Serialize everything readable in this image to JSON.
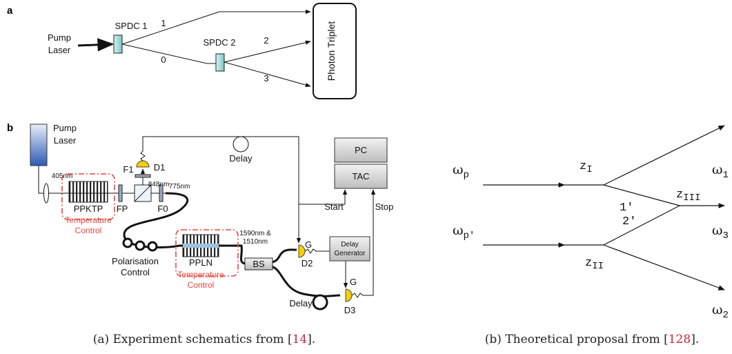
{
  "panel_a": {
    "label": "a",
    "pump": [
      "Pump",
      "Laser"
    ],
    "spdc1": "SPDC 1",
    "spdc2": "SPDC 2",
    "path_labels": [
      "1",
      "0",
      "2",
      "3"
    ],
    "detector": "Photon Triplet"
  },
  "panel_b": {
    "label": "b",
    "pump": [
      "Pump",
      "Laser"
    ],
    "pump_wavelength": "405nm",
    "d1": "D1",
    "f1": "F1",
    "wavelength_848": "848nm",
    "delay_top": "Delay",
    "pc": "PC",
    "tac": "TAC",
    "ppktp": "PPKTP",
    "fp": "FP",
    "f0": "F0",
    "wavelength_775": "775nm",
    "temperature_control_1": [
      "Temperature",
      "Control"
    ],
    "polarisation_control": [
      "Polarisation",
      "Control"
    ],
    "ppln": "PPLN",
    "temperature_control_2": [
      "Temperature",
      "Control"
    ],
    "wavelengths_telecom": [
      "1590nm &",
      "1510nm"
    ],
    "bs": "BS",
    "gate_1": "G",
    "d2": "D2",
    "delay_generator": [
      "Delay",
      "Generator"
    ],
    "gate_2": "G",
    "d3": "D3",
    "delay_bottom": "Delay",
    "start": "Start",
    "stop": "Stop"
  },
  "theory": {
    "omega_p": {
      "base": "ω",
      "sub": "p"
    },
    "z_1": {
      "base": "z",
      "sub": "I"
    },
    "omega_1": {
      "base": "ω",
      "sub": "1"
    },
    "one_prime": "1′",
    "z_3": {
      "base": "z",
      "sub": "III"
    },
    "omega_p_prime": {
      "base": "ω",
      "sub": "p′"
    },
    "two_prime": "2′",
    "omega_3": {
      "base": "ω",
      "sub": "3"
    },
    "z_2": {
      "base": "z",
      "sub": "II"
    },
    "omega_2": {
      "base": "ω",
      "sub": "2"
    }
  },
  "captions": [
    {
      "prefix": "(a) Experiment schematics from [",
      "ref": "14",
      "suffix": "]."
    },
    {
      "prefix": "(b) Theoretical proposal from [",
      "ref": "128",
      "suffix": "]."
    }
  ]
}
